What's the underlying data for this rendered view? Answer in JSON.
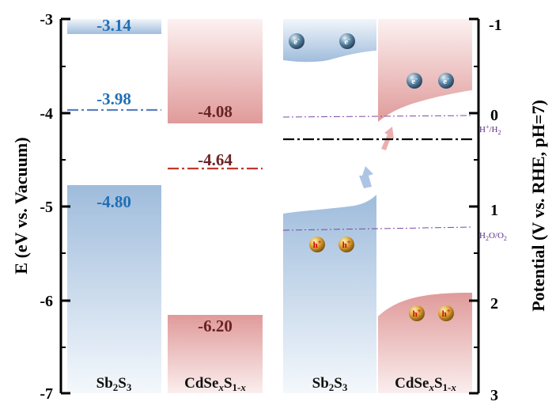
{
  "left_axis": {
    "label": "E (eV vs. Vacuum)",
    "ticks": [
      "-3",
      "-4",
      "-5",
      "-6",
      "-7"
    ]
  },
  "right_axis": {
    "label": "Potential (V vs. RHE, pH=7)",
    "ticks": [
      "-1",
      "0",
      "1",
      "2",
      "3"
    ]
  },
  "left_panel": {
    "sb2s3": {
      "material": "Sb₂S₃",
      "cb_label": "-3.14",
      "fermi_label": "-3.98",
      "vb_label": "-4.80",
      "cb": -3.14,
      "fermi": -3.98,
      "vb": -4.8
    },
    "cdses": {
      "material": "CdSeₓS₁₋ₓ",
      "cb_label": "-4.08",
      "fermi_label": "-4.64",
      "vb_label": "-6.20",
      "cb": -4.08,
      "fermi": -4.64,
      "vb": -6.2
    }
  },
  "right_panel": {
    "sb2s3_material": "Sb₂S₃",
    "cdses_material": "CdSeₓS₁₋ₓ",
    "ref_h2": "H⁺/H₂",
    "ref_o2": "H₂O/O₂",
    "electron_symbol": "e⁻",
    "hole_symbol": "h⁺"
  },
  "colors": {
    "blue_band": "#a9c3e0",
    "red_band": "#e2a3a3",
    "blue_text": "#1f6fb5",
    "red_text": "#6b2323",
    "ref_line": "#7a4aa8"
  }
}
